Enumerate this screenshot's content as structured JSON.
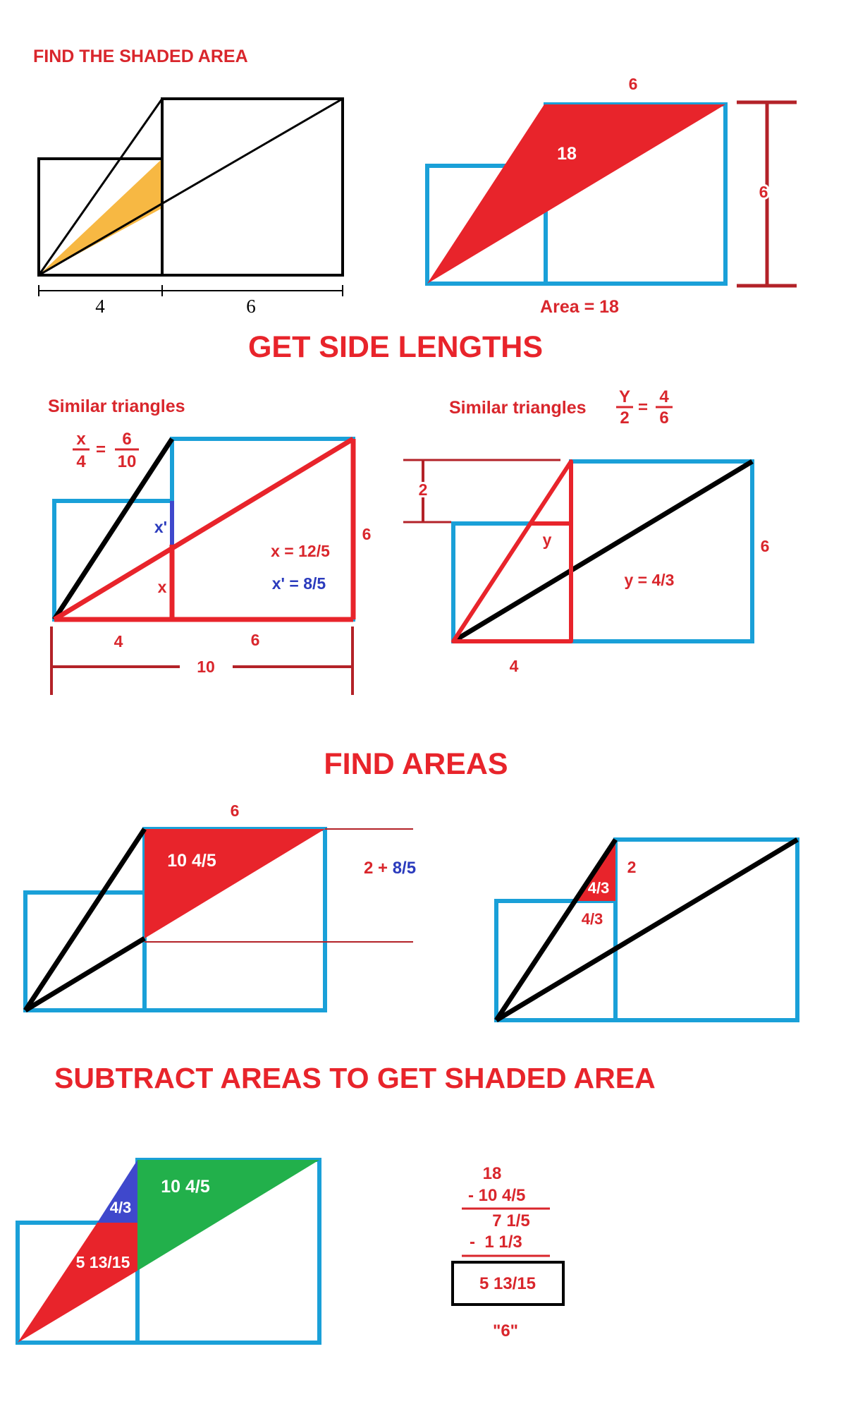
{
  "colors": {
    "red": "#e8242b",
    "blue": "#1aa0d8",
    "black": "#000000",
    "orange": "#f7b843",
    "green": "#22b04b",
    "purple": "#3f48cc",
    "label_red": "#d9262c",
    "label_blue": "#2b3bbd",
    "thin_red": "#b32228"
  },
  "problem": {
    "title": "FIND THE SHADED AREA",
    "dim_left": "4",
    "dim_right": "6"
  },
  "area_figure": {
    "top_label": "6",
    "inner_label": "18",
    "height_label": "6",
    "area_caption": "Area = 18"
  },
  "sections": {
    "side_lengths": "GET SIDE LENGTHS",
    "find_areas": "FIND AREAS",
    "subtract": "SUBTRACT AREAS TO GET SHADED AREA"
  },
  "similar_left": {
    "heading": "Similar triangles",
    "eq_num_left": "x",
    "eq_den_left": "4",
    "eq_sign": "=",
    "eq_num_right": "6",
    "eq_den_right": "10",
    "x_prime": "x'",
    "x": "x",
    "height": "6",
    "result_x": "x = 12/5",
    "result_x_prime": "x' = 8/5",
    "base_left": "4",
    "base_right": "6",
    "total": "10"
  },
  "similar_right": {
    "heading": "Similar triangles",
    "eq_num_left": "Y",
    "eq_den_left": "2",
    "eq_sign": "=",
    "eq_num_right": "4",
    "eq_den_right": "6",
    "offset": "2",
    "y": "y",
    "height": "6",
    "result_y": "y = 4/3",
    "base": "4"
  },
  "areas_left": {
    "top_label": "6",
    "inner_label": "10 4/5",
    "height_expr_a": "2 + ",
    "height_expr_b": "8/5"
  },
  "areas_right": {
    "small_area": "4/3",
    "side_label": "2",
    "base_label": "4/3"
  },
  "subtract_fig": {
    "purple_label": "4/3",
    "green_label": "10 4/5",
    "red_label": "5 13/15"
  },
  "calc": {
    "line1": "18",
    "line2": "- 10 4/5",
    "line3": "7 1/5",
    "line4": "-  1 1/3",
    "answer": "5 13/15",
    "footnote": "\"6\""
  }
}
